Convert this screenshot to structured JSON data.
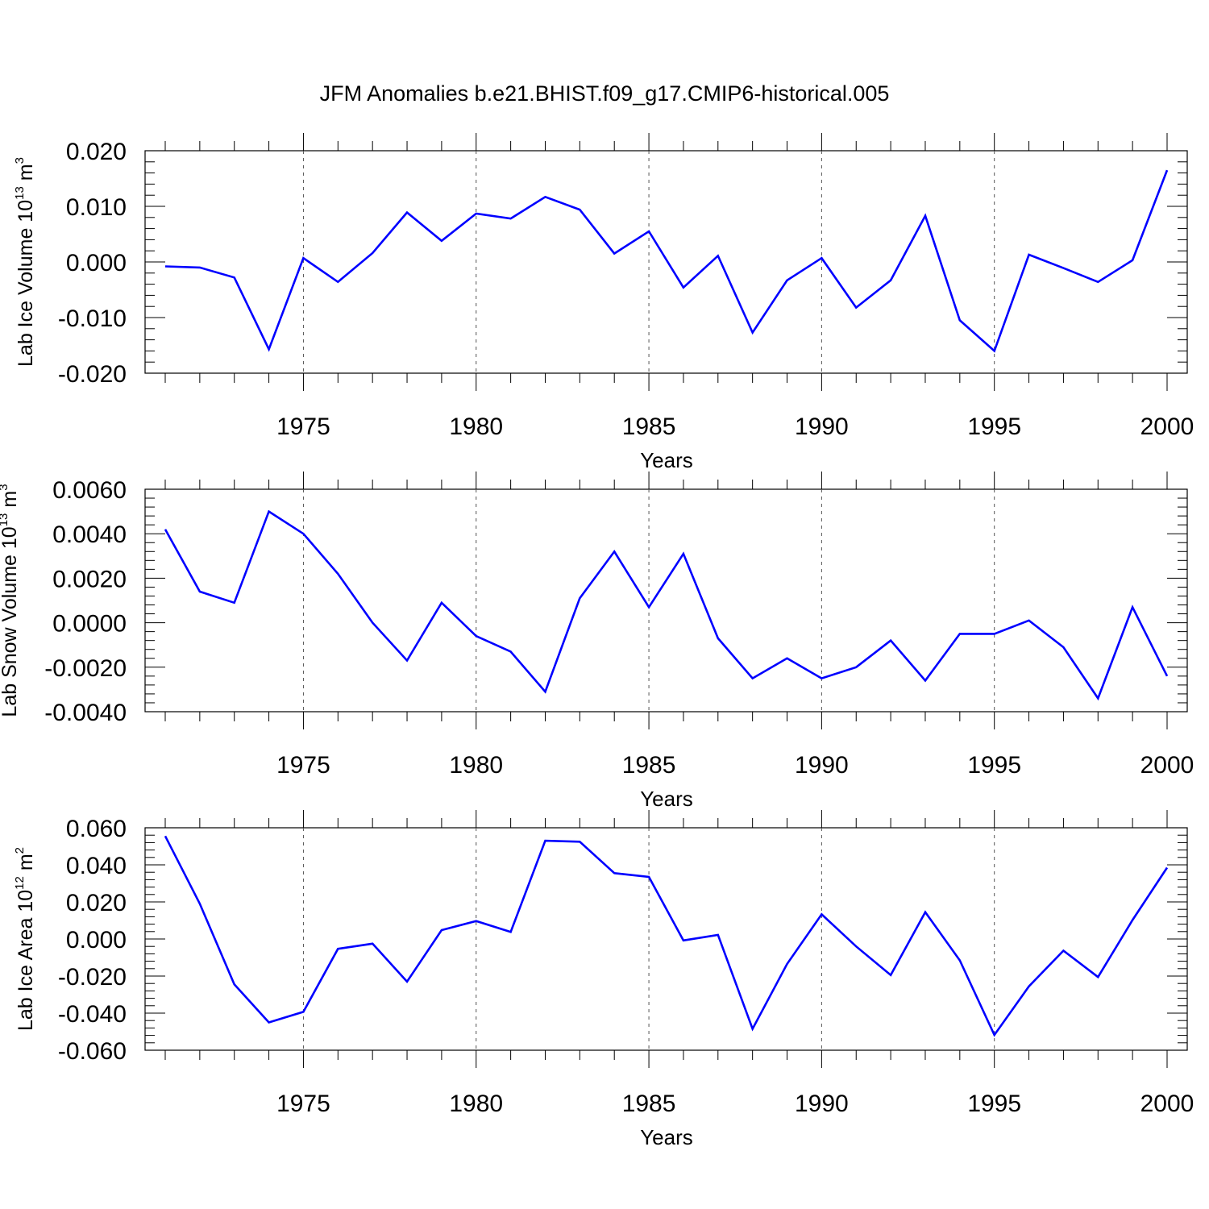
{
  "title": "JFM Anomalies b.e21.BHIST.f09_g17.CMIP6-historical.005",
  "line_color": "#0000ff",
  "chart_data": [
    {
      "type": "line",
      "ylabel": "Lab Ice Volume",
      "ylabel_scale_base": "10",
      "ylabel_scale_exp": "13",
      "ylabel_unit": "m",
      "ylabel_unit_exp": "3",
      "xlabel": "Years",
      "xlim": [
        1971,
        2000
      ],
      "ylim": [
        -0.02,
        0.02
      ],
      "yticks": [
        -0.02,
        -0.01,
        0.0,
        0.01,
        0.02
      ],
      "ytick_labels": [
        "-0.020",
        "-0.010",
        "0.000",
        "0.010",
        "0.020"
      ],
      "xticks": [
        1975,
        1980,
        1985,
        1990,
        1995,
        2000
      ],
      "xtick_labels": [
        "1975",
        "1980",
        "1985",
        "1990",
        "1995",
        "2000"
      ],
      "x": [
        1971,
        1972,
        1973,
        1974,
        1975,
        1976,
        1977,
        1978,
        1979,
        1980,
        1981,
        1982,
        1983,
        1984,
        1985,
        1986,
        1987,
        1988,
        1989,
        1990,
        1991,
        1992,
        1993,
        1994,
        1995,
        1996,
        1997,
        1998,
        1999,
        2000
      ],
      "y": [
        -0.0008,
        -0.001,
        -0.0028,
        -0.0157,
        0.0007,
        -0.0036,
        0.0016,
        0.0089,
        0.0038,
        0.0087,
        0.0078,
        0.0117,
        0.0094,
        0.0015,
        0.0055,
        -0.0046,
        0.0011,
        -0.0127,
        -0.0033,
        0.0007,
        -0.0082,
        -0.0033,
        0.0083,
        -0.0105,
        -0.016,
        0.0013,
        -0.0011,
        -0.0036,
        0.0003,
        0.0165
      ]
    },
    {
      "type": "line",
      "ylabel": "Lab Snow Volume",
      "ylabel_scale_base": "10",
      "ylabel_scale_exp": "13",
      "ylabel_unit": "m",
      "ylabel_unit_exp": "3",
      "xlabel": "Years",
      "xlim": [
        1971,
        2000
      ],
      "ylim": [
        -0.004,
        0.006
      ],
      "yticks": [
        -0.004,
        -0.002,
        0.0,
        0.002,
        0.004,
        0.006
      ],
      "ytick_labels": [
        "-0.0040",
        "-0.0020",
        "0.0000",
        "0.0020",
        "0.0040",
        "0.0060"
      ],
      "xticks": [
        1975,
        1980,
        1985,
        1990,
        1995,
        2000
      ],
      "xtick_labels": [
        "1975",
        "1980",
        "1985",
        "1990",
        "1995",
        "2000"
      ],
      "x": [
        1971,
        1972,
        1973,
        1974,
        1975,
        1976,
        1977,
        1978,
        1979,
        1980,
        1981,
        1982,
        1983,
        1984,
        1985,
        1986,
        1987,
        1988,
        1989,
        1990,
        1991,
        1992,
        1993,
        1994,
        1995,
        1996,
        1997,
        1998,
        1999,
        2000
      ],
      "y": [
        0.0042,
        0.0014,
        0.0009,
        0.005,
        0.004,
        0.0022,
        0.0,
        -0.0017,
        0.0009,
        -0.0006,
        -0.0013,
        -0.0031,
        0.0011,
        0.0032,
        0.0007,
        0.0031,
        -0.0007,
        -0.0025,
        -0.0016,
        -0.0025,
        -0.002,
        -0.0008,
        -0.0026,
        -0.0005,
        -0.0005,
        0.0001,
        -0.0011,
        -0.0034,
        0.0007,
        -0.0024
      ]
    },
    {
      "type": "line",
      "ylabel": "Lab Ice Area",
      "ylabel_scale_base": "10",
      "ylabel_scale_exp": "12",
      "ylabel_unit": "m",
      "ylabel_unit_exp": "2",
      "xlabel": "Years",
      "xlim": [
        1971,
        2000
      ],
      "ylim": [
        -0.06,
        0.06
      ],
      "yticks": [
        -0.06,
        -0.04,
        -0.02,
        0.0,
        0.02,
        0.04,
        0.06
      ],
      "ytick_labels": [
        "-0.060",
        "-0.040",
        "-0.020",
        "0.000",
        "0.020",
        "0.040",
        "0.060"
      ],
      "xticks": [
        1975,
        1980,
        1985,
        1990,
        1995,
        2000
      ],
      "xtick_labels": [
        "1975",
        "1980",
        "1985",
        "1990",
        "1995",
        "2000"
      ],
      "x": [
        1971,
        1972,
        1973,
        1974,
        1975,
        1976,
        1977,
        1978,
        1979,
        1980,
        1981,
        1982,
        1983,
        1984,
        1985,
        1986,
        1987,
        1988,
        1989,
        1990,
        1991,
        1992,
        1993,
        1994,
        1995,
        1996,
        1997,
        1998,
        1999,
        2000
      ],
      "y": [
        0.0555,
        0.019,
        -0.0245,
        -0.045,
        -0.0393,
        -0.0053,
        -0.0025,
        -0.023,
        0.0048,
        0.0097,
        0.0038,
        0.053,
        0.0525,
        0.0355,
        0.0335,
        -0.0008,
        0.0022,
        -0.0485,
        -0.0135,
        0.0133,
        -0.004,
        -0.0195,
        0.0145,
        -0.0115,
        -0.0518,
        -0.0255,
        -0.0063,
        -0.0205,
        0.0102,
        0.0385
      ]
    }
  ]
}
